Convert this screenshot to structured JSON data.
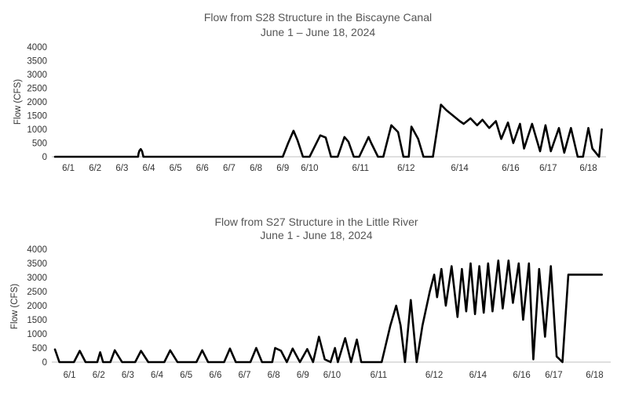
{
  "chart_data": [
    {
      "type": "line",
      "title": "Flow from S28 Structure in the Biscayne Canal",
      "subtitle": "June 1 – June 18, 2024",
      "ylabel": "Flow (CFS)",
      "ylim": [
        0,
        4000
      ],
      "yticks": [
        "4000",
        "3500",
        "3000",
        "2500",
        "2000",
        "1500",
        "1000",
        "500",
        "0"
      ],
      "xlabels": [
        "6/1",
        "6/2",
        "6/3",
        "6/4",
        "6/5",
        "6/6",
        "6/7",
        "6/8",
        "6/9",
        "6/10",
        "6/11",
        "6/12",
        "6/14",
        "6/16",
        "6/17",
        "6/18"
      ],
      "xlabel_days": [
        1,
        2,
        3,
        4,
        5,
        6,
        7,
        8,
        9,
        10,
        11.9,
        13.6,
        15.6,
        17.5,
        18.9,
        20.4
      ],
      "xlim": [
        0.5,
        21
      ],
      "grid": false,
      "legend": "none",
      "series": [
        {
          "x": [
            0.5,
            3.6,
            3.62,
            3.65,
            3.7,
            3.75,
            3.78,
            3.8,
            9.0,
            9.2,
            9.4,
            9.55,
            9.75,
            10.0,
            10.4,
            10.6,
            10.8,
            11.05,
            11.3,
            11.45,
            11.65,
            11.85,
            12.2,
            12.3,
            12.55,
            12.75,
            13.05,
            13.3,
            13.5,
            13.7,
            13.8,
            14.05,
            14.25,
            14.6,
            14.9,
            15.1,
            15.35,
            15.6,
            15.75,
            16.0,
            16.25,
            16.45,
            16.7,
            16.95,
            17.15,
            17.4,
            17.6,
            17.85,
            18.0,
            18.3,
            18.6,
            18.8,
            19.0,
            19.3,
            19.5,
            19.75,
            20.0,
            20.2,
            20.4,
            20.55,
            20.8,
            20.9
          ],
          "y": [
            0,
            0,
            120,
            220,
            280,
            200,
            80,
            0,
            0,
            500,
            950,
            600,
            0,
            0,
            780,
            700,
            0,
            0,
            720,
            550,
            0,
            0,
            720,
            500,
            0,
            0,
            1150,
            900,
            0,
            0,
            1100,
            650,
            0,
            0,
            1900,
            1700,
            1500,
            1300,
            1200,
            1400,
            1150,
            1350,
            1050,
            1300,
            650,
            1250,
            500,
            1200,
            300,
            1200,
            200,
            1150,
            200,
            1050,
            150,
            1050,
            0,
            0,
            1050,
            300,
            0,
            1000
          ]
        }
      ]
    },
    {
      "type": "line",
      "title": "Flow from S27 Structure in the Little River",
      "subtitle": "June 1 - June 18, 2024",
      "ylabel": "Flow (CFS)",
      "ylim": [
        0,
        4000
      ],
      "yticks": [
        "4000",
        "3500",
        "3000",
        "2500",
        "2000",
        "1500",
        "1000",
        "500",
        "0"
      ],
      "xlabels": [
        "6/1",
        "6/2",
        "6/3",
        "6/4",
        "6/5",
        "6/6",
        "6/7",
        "6/8",
        "6/9",
        "6/10",
        "6/11",
        "6/12",
        "6/14",
        "6/16",
        "6/17",
        "6/18"
      ],
      "xlabel_days": [
        1,
        2,
        3,
        4,
        5,
        6,
        7,
        8,
        9,
        10,
        11.6,
        13.5,
        15,
        16.5,
        17.6,
        19
      ],
      "xlim": [
        0.5,
        19.5
      ],
      "grid": false,
      "legend": "none",
      "series": [
        {
          "x": [
            0.5,
            0.55,
            0.65,
            0.75,
            1.15,
            1.35,
            1.55,
            1.95,
            2.05,
            2.15,
            2.4,
            2.55,
            2.8,
            3.25,
            3.45,
            3.7,
            4.25,
            4.45,
            4.7,
            5.35,
            5.55,
            5.75,
            6.3,
            6.5,
            6.7,
            7.2,
            7.4,
            7.6,
            7.95,
            8.05,
            8.25,
            8.45,
            8.65,
            8.9,
            9.15,
            9.35,
            9.55,
            9.75,
            9.95,
            10.1,
            10.2,
            10.45,
            10.65,
            10.85,
            11.0,
            11.4,
            11.7,
            12.0,
            12.2,
            12.35,
            12.5,
            12.7,
            12.9,
            13.1,
            13.35,
            13.5,
            13.6,
            13.75,
            13.9,
            14.1,
            14.3,
            14.45,
            14.6,
            14.75,
            14.9,
            15.05,
            15.2,
            15.35,
            15.5,
            15.7,
            15.85,
            16.05,
            16.2,
            16.4,
            16.55,
            16.75,
            16.9,
            17.1,
            17.3,
            17.5,
            17.7,
            17.9,
            18.1,
            18.3,
            18.5,
            18.7,
            18.9,
            19.1,
            19.25
          ],
          "y": [
            450,
            300,
            0,
            0,
            0,
            400,
            0,
            0,
            350,
            0,
            0,
            420,
            0,
            0,
            400,
            0,
            0,
            420,
            0,
            0,
            420,
            0,
            0,
            480,
            0,
            0,
            500,
            0,
            0,
            500,
            400,
            0,
            480,
            0,
            460,
            0,
            900,
            100,
            0,
            500,
            0,
            850,
            0,
            800,
            0,
            0,
            0,
            1300,
            2000,
            1300,
            0,
            2200,
            0,
            1300,
            2500,
            3100,
            2300,
            3300,
            2000,
            3400,
            1600,
            3300,
            1800,
            3500,
            1700,
            3400,
            1750,
            3500,
            1800,
            3600,
            1900,
            3600,
            2100,
            3500,
            1500,
            3500,
            100,
            3300,
            900,
            3400,
            200,
            0,
            3100,
            3100,
            3100,
            3100,
            3100,
            3100,
            3100
          ]
        }
      ]
    }
  ]
}
